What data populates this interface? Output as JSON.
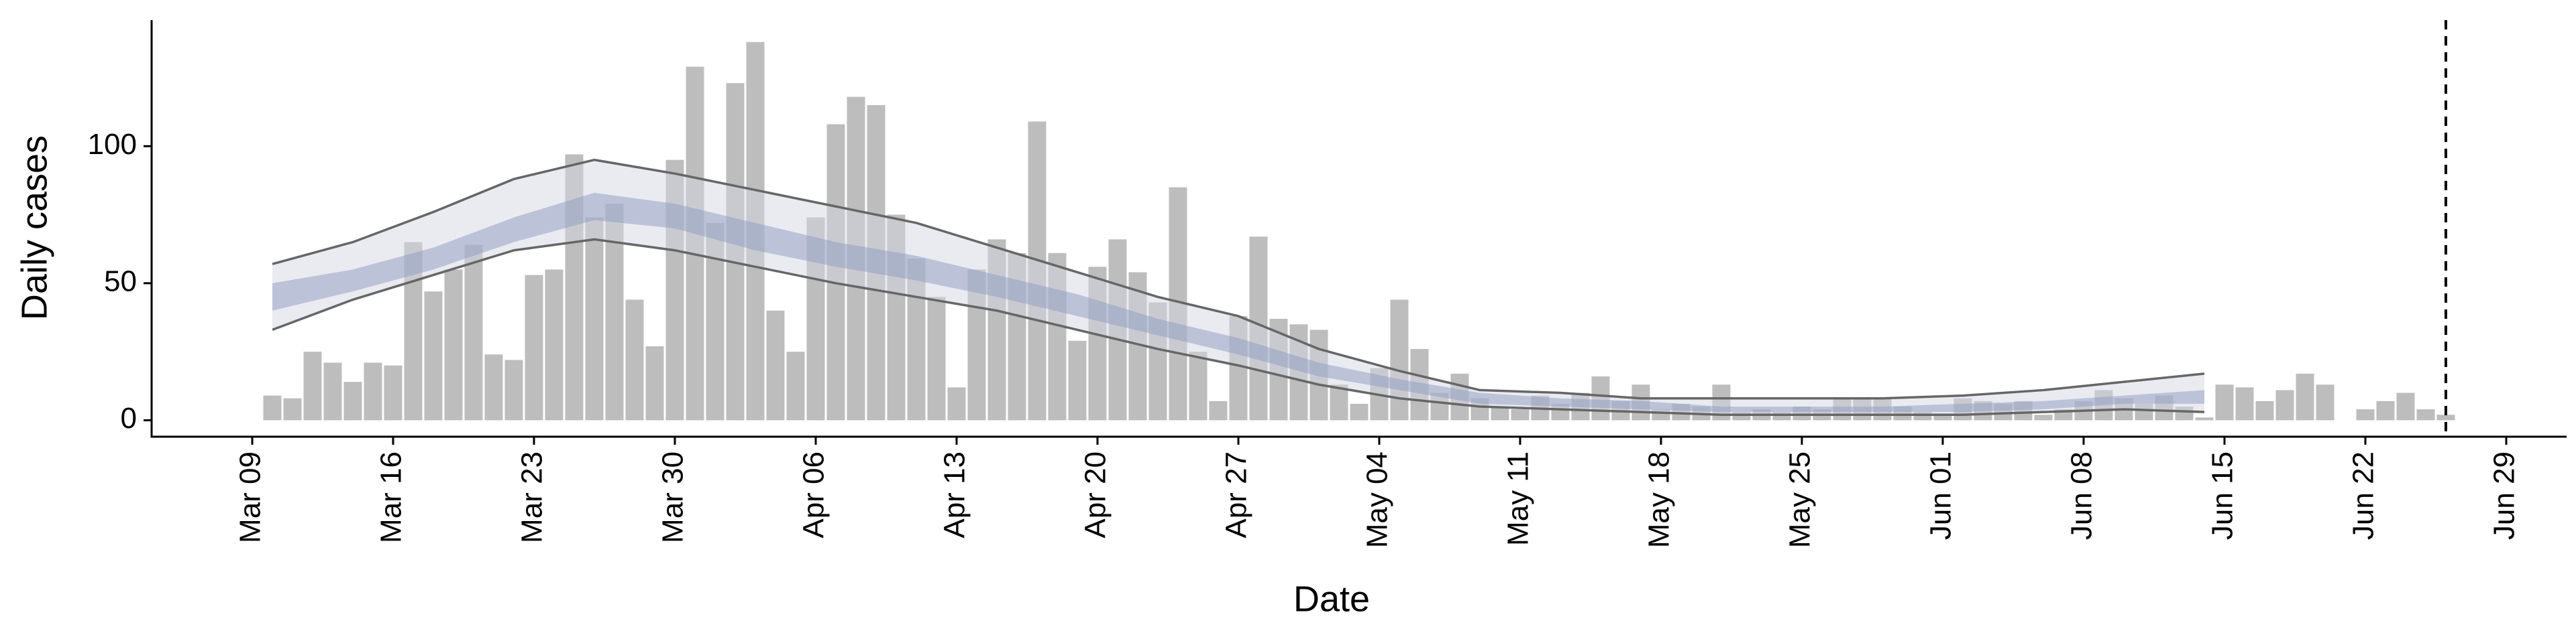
{
  "chart_data": {
    "type": "bar",
    "xlabel": "Date",
    "ylabel": "Daily cases",
    "x": [
      10,
      11,
      12,
      13,
      14,
      15,
      16,
      17,
      18,
      19,
      20,
      21,
      22,
      23,
      24,
      25,
      26,
      27,
      28,
      29,
      30,
      31,
      32,
      33,
      34,
      35,
      36,
      37,
      38,
      39,
      40,
      41,
      42,
      43,
      44,
      45,
      46,
      47,
      48,
      49,
      50,
      51,
      52,
      53,
      54,
      55,
      56,
      57,
      58,
      59,
      60,
      61,
      62,
      63,
      64,
      65,
      66,
      67,
      68,
      69,
      70,
      71,
      72,
      73,
      74,
      75,
      76,
      77,
      78,
      79,
      80,
      81,
      82,
      83,
      84,
      85,
      86,
      87,
      88,
      89,
      90,
      91,
      92,
      93,
      94,
      95,
      96,
      97,
      98,
      99,
      100,
      101,
      102,
      103,
      104,
      105,
      106,
      107,
      108,
      109,
      110,
      111,
      112,
      113,
      114,
      115,
      116,
      117,
      118
    ],
    "values": [
      9,
      8,
      25,
      21,
      14,
      21,
      20,
      65,
      47,
      55,
      64,
      24,
      22,
      53,
      55,
      97,
      74,
      79,
      44,
      27,
      95,
      129,
      72,
      123,
      138,
      40,
      25,
      74,
      108,
      118,
      115,
      75,
      59,
      45,
      12,
      55,
      66,
      61,
      109,
      61,
      29,
      56,
      66,
      54,
      43,
      85,
      25,
      7,
      38,
      67,
      37,
      35,
      33,
      13,
      6,
      19,
      44,
      26,
      10,
      17,
      8,
      5,
      4,
      9,
      6,
      10,
      16,
      7,
      13,
      4,
      6,
      5,
      13,
      3,
      4,
      3,
      5,
      4,
      8,
      8,
      8,
      5,
      3,
      2,
      8,
      7,
      6,
      7,
      2,
      4,
      7,
      11,
      8,
      6,
      9,
      5,
      1,
      13,
      12,
      7,
      11,
      17,
      13,
      null,
      4,
      7,
      10,
      4,
      2
    ],
    "color": "#bdbdbd",
    "xlim": [
      4,
      124
    ],
    "xticks": [
      {
        "value": 9,
        "label": "Mar 09"
      },
      {
        "value": 16,
        "label": "Mar 16"
      },
      {
        "value": 23,
        "label": "Mar 23"
      },
      {
        "value": 30,
        "label": "Mar 30"
      },
      {
        "value": 37,
        "label": "Apr 06"
      },
      {
        "value": 44,
        "label": "Apr 13"
      },
      {
        "value": 51,
        "label": "Apr 20"
      },
      {
        "value": 58,
        "label": "Apr 27"
      },
      {
        "value": 65,
        "label": "May 04"
      },
      {
        "value": 72,
        "label": "May 11"
      },
      {
        "value": 79,
        "label": "May 18"
      },
      {
        "value": 86,
        "label": "May 25"
      },
      {
        "value": 93,
        "label": "Jun 01"
      },
      {
        "value": 100,
        "label": "Jun 08"
      },
      {
        "value": 107,
        "label": "Jun 15"
      },
      {
        "value": 114,
        "label": "Jun 22"
      },
      {
        "value": 121,
        "label": "Jun 29"
      }
    ],
    "ylim": [
      -6,
      146
    ],
    "yticks": [
      0,
      50,
      100
    ],
    "vline": 118,
    "band": {
      "x": [
        10,
        14,
        18,
        22,
        26,
        30,
        34,
        38,
        42,
        46,
        50,
        54,
        58,
        62,
        66,
        70,
        74,
        78,
        82,
        86,
        90,
        94,
        98,
        102,
        106
      ],
      "outer_upper": [
        57,
        65,
        76,
        88,
        95,
        90,
        84,
        78,
        72,
        63,
        54,
        45,
        38,
        26,
        18,
        11,
        10,
        8,
        8,
        8,
        8,
        9,
        11,
        14,
        17
      ],
      "outer_lower": [
        33,
        44,
        53,
        62,
        66,
        62,
        56,
        50,
        45,
        40,
        33,
        26,
        20,
        13,
        8,
        5,
        4,
        3,
        2,
        2,
        2,
        2,
        3,
        4,
        3
      ],
      "inner_upper": [
        50,
        55,
        63,
        74,
        83,
        79,
        72,
        65,
        60,
        53,
        46,
        37,
        30,
        21,
        15,
        10,
        8,
        7,
        5,
        5,
        5,
        6,
        7,
        9,
        11
      ],
      "inner_lower": [
        40,
        47,
        55,
        65,
        73,
        70,
        62,
        56,
        51,
        45,
        38,
        31,
        24,
        16,
        11,
        6,
        5,
        4,
        3,
        3,
        3,
        3,
        4,
        6,
        6
      ],
      "outer_color": "#d5d8e4",
      "inner_color": "#8d9bc2",
      "line_color": "#666666"
    }
  }
}
